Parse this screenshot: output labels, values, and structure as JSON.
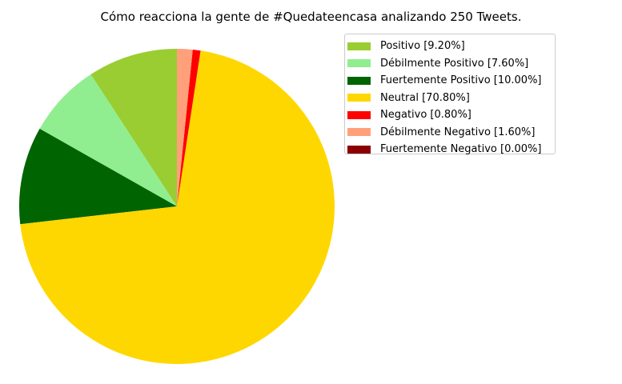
{
  "chart_data": {
    "type": "pie",
    "title": "Cómo reacciona la gente de #Quedateencasa analizando 250 Tweets.",
    "start_angle_deg": 90,
    "direction": "counterclockwise",
    "slices": [
      {
        "label": "Positivo",
        "legend_label": "Positivo [9.20%]",
        "value": 9.2,
        "color": "#9acd32"
      },
      {
        "label": "Débilmente Positivo",
        "legend_label": "Débilmente Positivo [7.60%]",
        "value": 7.6,
        "color": "#90ee90"
      },
      {
        "label": "Fuertemente Positivo",
        "legend_label": "Fuertemente Positivo [10.00%]",
        "value": 10.0,
        "color": "#006400"
      },
      {
        "label": "Neutral",
        "legend_label": "Neutral [70.80%]",
        "value": 70.8,
        "color": "#ffd700"
      },
      {
        "label": "Negativo",
        "legend_label": "Negativo [0.80%]",
        "value": 0.8,
        "color": "#ff0000"
      },
      {
        "label": "Débilmente Negativo",
        "legend_label": "Débilmente Negativo [1.60%]",
        "value": 1.6,
        "color": "#ffa07a"
      },
      {
        "label": "Fuertemente Negativo",
        "legend_label": "Fuertemente Negativo [0.00%]",
        "value": 0.0,
        "color": "#8b0000"
      }
    ],
    "legend": {
      "position": "top-right"
    }
  }
}
